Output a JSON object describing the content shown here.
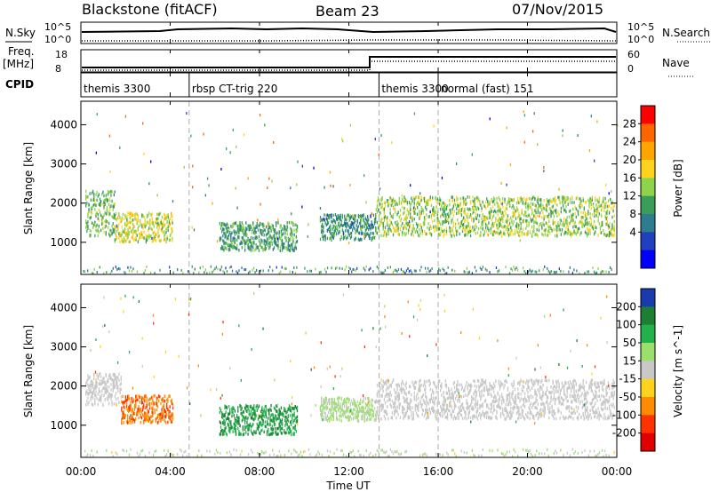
{
  "header": {
    "station": "Blackstone (fitACF)",
    "beam": "Beam 23",
    "date": "07/Nov/2015"
  },
  "side_labels": {
    "nsky": "N.Sky",
    "nsearch": "N.Search",
    "freq": "Freq.",
    "freq_unit": "[MHz]",
    "nave": "Nave",
    "cpid": "CPID",
    "nsky_ticks": [
      "10^5",
      "10^0"
    ],
    "nsearch_ticks": [
      "10^5",
      "10^0"
    ],
    "freq_ticks": [
      "18",
      "8"
    ],
    "nave_ticks": [
      "60",
      "0"
    ]
  },
  "cpid_segments": [
    {
      "start": 0,
      "label": "themis 3300"
    },
    {
      "start": 4.85,
      "label": "rbsp CT-trig 220"
    },
    {
      "start": 13.35,
      "label": "themis 3300"
    },
    {
      "start": 16.0,
      "label": "normal (fast) 151"
    }
  ],
  "chart_data": [
    {
      "type": "heatmap",
      "title": "",
      "xlabel": "Time UT",
      "ylabel": "Slant Range [km]",
      "colorbar_label": "Power [dB]",
      "colorbar_ticks": [
        "28",
        "24",
        "20",
        "16",
        "12",
        "8",
        "4"
      ],
      "colorbar_colors": [
        "#ff0000",
        "#ff6600",
        "#ffa500",
        "#ffd21e",
        "#8fd34a",
        "#3a9e5a",
        "#2e7d8e",
        "#2040c0",
        "#0000ff"
      ],
      "xlim": [
        0,
        24
      ],
      "ylim": [
        180,
        4600
      ],
      "yticks": [
        "4000",
        "3000",
        "2000",
        "1000"
      ],
      "xticks": [
        "00:00",
        "04:00",
        "08:00",
        "12:00",
        "16:00",
        "20:00",
        "00:00"
      ],
      "echo_bands": [
        {
          "t0": 0.2,
          "t1": 1.5,
          "r_low": 1150,
          "r_high": 2300,
          "power_db": 14
        },
        {
          "t0": 1.5,
          "t1": 4.1,
          "r_low": 1000,
          "r_high": 1750,
          "power_db": 18
        },
        {
          "t0": 6.2,
          "t1": 9.7,
          "r_low": 780,
          "r_high": 1500,
          "power_db": 12
        },
        {
          "t0": 10.7,
          "t1": 13.2,
          "r_low": 1050,
          "r_high": 1700,
          "power_db": 10
        },
        {
          "t0": 13.2,
          "t1": 23.9,
          "r_low": 1150,
          "r_high": 2150,
          "power_db": 16
        }
      ],
      "ground_scatter": {
        "r_low": 200,
        "r_high": 380
      }
    },
    {
      "type": "heatmap",
      "title": "",
      "xlabel": "Time UT",
      "ylabel": "Slant Range [km]",
      "colorbar_label": "Velocity [m s^-1]",
      "colorbar_ticks": [
        "200",
        "100",
        "50",
        "15",
        "-15",
        "-50",
        "-100",
        "-200"
      ],
      "colorbar_colors": [
        "#1a3ab0",
        "#1e7e34",
        "#22b14c",
        "#9be06a",
        "#c8c8c8",
        "#ffd21e",
        "#ff8c00",
        "#ff3300",
        "#e00000"
      ],
      "xlim": [
        0,
        24
      ],
      "ylim": [
        180,
        4600
      ],
      "yticks": [
        "4000",
        "3000",
        "2000",
        "1000"
      ],
      "xticks": [
        "00:00",
        "04:00",
        "08:00",
        "12:00",
        "16:00",
        "20:00",
        "00:00"
      ],
      "echo_bands": [
        {
          "t0": 0.2,
          "t1": 1.8,
          "r_low": 1500,
          "r_high": 2300,
          "velocity": 0
        },
        {
          "t0": 1.8,
          "t1": 4.1,
          "r_low": 1050,
          "r_high": 1750,
          "velocity": -150
        },
        {
          "t0": 6.2,
          "t1": 9.7,
          "r_low": 750,
          "r_high": 1500,
          "velocity": 150
        },
        {
          "t0": 10.7,
          "t1": 13.2,
          "r_low": 1100,
          "r_high": 1700,
          "velocity": 40
        },
        {
          "t0": 13.2,
          "t1": 23.9,
          "r_low": 1150,
          "r_high": 2150,
          "velocity": 0
        }
      ],
      "ground_scatter": {
        "r_low": 200,
        "r_high": 380
      }
    }
  ]
}
